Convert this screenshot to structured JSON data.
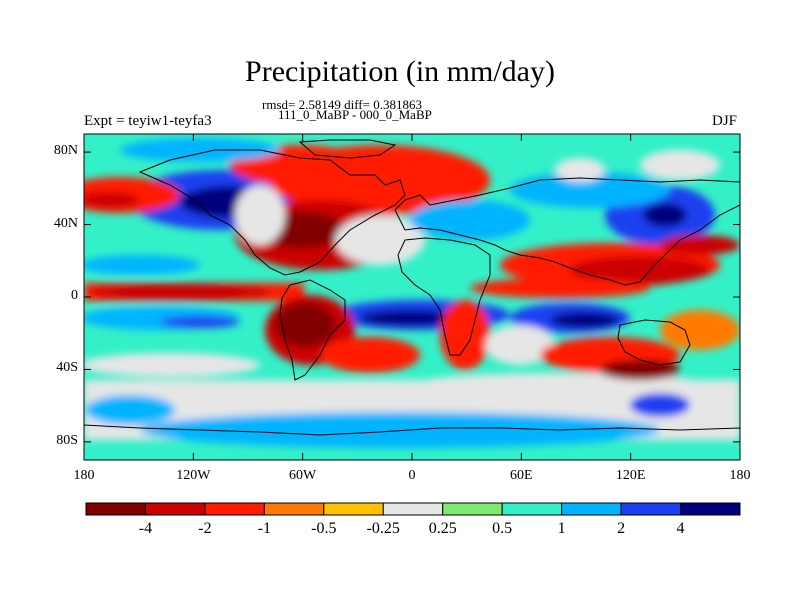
{
  "figure": {
    "title": "Precipitation (in mm/day)",
    "stats_line": "rmsd= 2.58149 diff= 0.381863",
    "case_line": "111_0_MaBP - 000_0_MaBP",
    "left_label": "Expt = teyiw1-teyfa3",
    "right_label": "DJF"
  },
  "axes": {
    "y_labels": [
      "80N",
      "40N",
      "0",
      "40S",
      "80S"
    ],
    "y_values": [
      80,
      40,
      0,
      -40,
      -80
    ],
    "x_labels": [
      "180",
      "120W",
      "60W",
      "0",
      "60E",
      "120E",
      "180"
    ],
    "x_values": [
      -180,
      -120,
      -60,
      0,
      60,
      120,
      180
    ]
  },
  "colorbar": {
    "labels": [
      "-4",
      "-2",
      "-1",
      "-0.5",
      "-0.25",
      "0.25",
      "0.5",
      "1",
      "2",
      "4"
    ],
    "colors": [
      "#800000",
      "#cc0000",
      "#ff1a00",
      "#ff7a00",
      "#ffc000",
      "#e6e6e6",
      "#7fe870",
      "#33f0c8",
      "#00b4ff",
      "#1a40f0",
      "#00007f"
    ]
  },
  "colors": {
    "land_outline": "#000000",
    "frame": "#000000"
  }
}
